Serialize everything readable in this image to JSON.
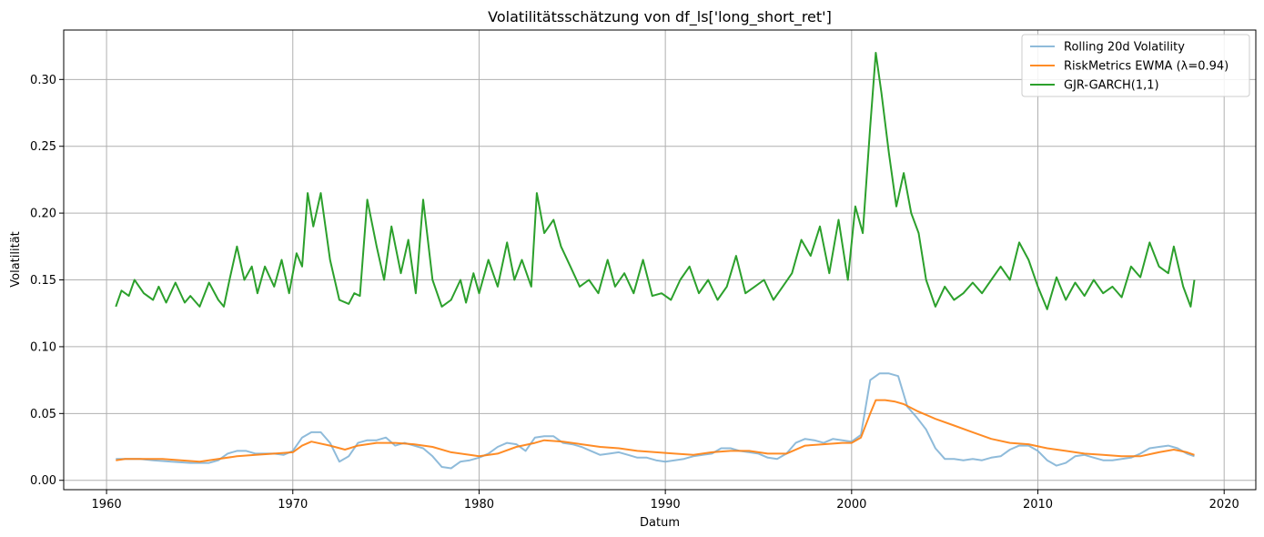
{
  "chart_data": {
    "type": "line",
    "title": "Volatilitätsschätzung von df_ls['long_short_ret']",
    "xlabel": "Datum",
    "ylabel": "Volatilität",
    "xlim": [
      1957.7,
      2021.7
    ],
    "ylim": [
      -0.007,
      0.337
    ],
    "x_ticks": [
      1960,
      1970,
      1980,
      1990,
      2000,
      2010,
      2020
    ],
    "x_tick_labels": [
      "1960",
      "1970",
      "1980",
      "1990",
      "2000",
      "2010",
      "2020"
    ],
    "y_ticks": [
      0.0,
      0.05,
      0.1,
      0.15,
      0.2,
      0.25,
      0.3
    ],
    "y_tick_labels": [
      "0.00",
      "0.05",
      "0.10",
      "0.15",
      "0.20",
      "0.25",
      "0.30"
    ],
    "grid": true,
    "legend_position": "top-right",
    "series": [
      {
        "name": "Rolling 20d Volatility",
        "color": "#7bafd4",
        "x": [
          1960.5,
          1961,
          1961.8,
          1962.5,
          1963.5,
          1964.5,
          1965.5,
          1966,
          1966.5,
          1967,
          1967.5,
          1968,
          1968.5,
          1969,
          1969.5,
          1970,
          1970.5,
          1971,
          1971.5,
          1972,
          1972.5,
          1973,
          1973.5,
          1974,
          1974.5,
          1975,
          1975.5,
          1976,
          1976.5,
          1977,
          1977.5,
          1978,
          1978.5,
          1979,
          1979.5,
          1980,
          1980.5,
          1981,
          1981.5,
          1982,
          1982.5,
          1983,
          1983.5,
          1984,
          1984.5,
          1985,
          1985.5,
          1986,
          1986.5,
          1987,
          1987.5,
          1988,
          1988.5,
          1989,
          1989.5,
          1990,
          1990.5,
          1991,
          1991.5,
          1992,
          1992.5,
          1993,
          1993.5,
          1994,
          1994.5,
          1995,
          1995.5,
          1996,
          1996.5,
          1997,
          1997.5,
          1998,
          1998.5,
          1999,
          1999.5,
          2000,
          2000.5,
          2001,
          2001.5,
          2002,
          2002.5,
          2003,
          2003.5,
          2004,
          2004.5,
          2005,
          2005.5,
          2006,
          2006.5,
          2007,
          2007.5,
          2008,
          2008.5,
          2009,
          2009.5,
          2010,
          2010.5,
          2011,
          2011.5,
          2012,
          2012.5,
          2013,
          2013.5,
          2014,
          2014.5,
          2015,
          2015.5,
          2016,
          2016.5,
          2017,
          2017.5,
          2018,
          2018.4
        ],
        "values": [
          0.016,
          0.016,
          0.016,
          0.015,
          0.014,
          0.013,
          0.013,
          0.015,
          0.02,
          0.022,
          0.022,
          0.02,
          0.02,
          0.02,
          0.019,
          0.022,
          0.032,
          0.036,
          0.036,
          0.028,
          0.014,
          0.018,
          0.028,
          0.03,
          0.03,
          0.032,
          0.026,
          0.028,
          0.026,
          0.024,
          0.018,
          0.01,
          0.009,
          0.014,
          0.015,
          0.017,
          0.02,
          0.025,
          0.028,
          0.027,
          0.022,
          0.032,
          0.033,
          0.033,
          0.028,
          0.027,
          0.025,
          0.022,
          0.019,
          0.02,
          0.021,
          0.019,
          0.017,
          0.017,
          0.015,
          0.014,
          0.015,
          0.016,
          0.018,
          0.019,
          0.02,
          0.024,
          0.024,
          0.022,
          0.021,
          0.02,
          0.017,
          0.016,
          0.02,
          0.028,
          0.031,
          0.03,
          0.028,
          0.031,
          0.03,
          0.029,
          0.034,
          0.075,
          0.08,
          0.08,
          0.078,
          0.055,
          0.047,
          0.038,
          0.024,
          0.016,
          0.016,
          0.015,
          0.016,
          0.015,
          0.017,
          0.018,
          0.023,
          0.026,
          0.026,
          0.022,
          0.015,
          0.011,
          0.013,
          0.018,
          0.019,
          0.017,
          0.015,
          0.015,
          0.016,
          0.017,
          0.02,
          0.024,
          0.025,
          0.026,
          0.024,
          0.02,
          0.018
        ],
        "opacity": 0.85
      },
      {
        "name": "RiskMetrics EWMA (λ=0.94)",
        "color": "#ff7f0e",
        "x": [
          1960.5,
          1961,
          1962,
          1963,
          1964,
          1965,
          1966,
          1967,
          1968,
          1969,
          1970,
          1970.5,
          1971,
          1972,
          1972.8,
          1973.5,
          1974.5,
          1975.5,
          1976.5,
          1977.5,
          1978.5,
          1979.5,
          1980,
          1981,
          1982,
          1983,
          1983.5,
          1984.5,
          1985.5,
          1986.5,
          1987.5,
          1988.5,
          1989.5,
          1990.5,
          1991.5,
          1992.5,
          1993.5,
          1994.5,
          1995.5,
          1996.5,
          1997.5,
          1998.5,
          1999.5,
          2000,
          2000.5,
          2001,
          2001.3,
          2001.8,
          2002.3,
          2002.8,
          2003.5,
          2004.5,
          2005.5,
          2006.5,
          2007.5,
          2008.5,
          2009.5,
          2010.5,
          2011.5,
          2012.5,
          2013.5,
          2014.5,
          2015.5,
          2016.5,
          2017.3,
          2018,
          2018.4
        ],
        "values": [
          0.015,
          0.016,
          0.016,
          0.016,
          0.015,
          0.014,
          0.016,
          0.018,
          0.019,
          0.02,
          0.021,
          0.026,
          0.029,
          0.026,
          0.023,
          0.026,
          0.028,
          0.028,
          0.027,
          0.025,
          0.021,
          0.019,
          0.018,
          0.02,
          0.025,
          0.028,
          0.03,
          0.029,
          0.027,
          0.025,
          0.024,
          0.022,
          0.021,
          0.02,
          0.019,
          0.021,
          0.022,
          0.022,
          0.02,
          0.02,
          0.026,
          0.027,
          0.028,
          0.028,
          0.032,
          0.05,
          0.06,
          0.06,
          0.059,
          0.057,
          0.052,
          0.046,
          0.041,
          0.036,
          0.031,
          0.028,
          0.027,
          0.024,
          0.022,
          0.02,
          0.019,
          0.018,
          0.018,
          0.021,
          0.023,
          0.021,
          0.019
        ],
        "opacity": 0.9
      },
      {
        "name": "GJR-GARCH(1,1)",
        "color": "#2ca02c",
        "x": [
          1960.5,
          1960.8,
          1961.2,
          1961.5,
          1962,
          1962.5,
          1962.8,
          1963.2,
          1963.7,
          1964.2,
          1964.5,
          1965,
          1965.5,
          1966,
          1966.3,
          1966.6,
          1967,
          1967.4,
          1967.8,
          1968.1,
          1968.5,
          1969,
          1969.4,
          1969.8,
          1970.2,
          1970.5,
          1970.8,
          1971.1,
          1971.5,
          1972,
          1972.5,
          1973,
          1973.3,
          1973.6,
          1974,
          1974.5,
          1974.9,
          1975.3,
          1975.8,
          1976.2,
          1976.6,
          1977,
          1977.5,
          1978,
          1978.5,
          1979,
          1979.3,
          1979.7,
          1980,
          1980.5,
          1981,
          1981.5,
          1981.9,
          1982.3,
          1982.8,
          1983.1,
          1983.5,
          1984,
          1984.4,
          1984.9,
          1985.4,
          1985.9,
          1986.4,
          1986.9,
          1987.3,
          1987.8,
          1988.3,
          1988.8,
          1989.3,
          1989.8,
          1990.3,
          1990.8,
          1991.3,
          1991.8,
          1992.3,
          1992.8,
          1993.3,
          1993.8,
          1994.3,
          1994.8,
          1995.3,
          1995.8,
          1996.3,
          1996.8,
          1997.3,
          1997.8,
          1998.3,
          1998.8,
          1999.3,
          1999.8,
          2000.2,
          2000.6,
          2001,
          2001.3,
          2001.6,
          2002,
          2002.4,
          2002.8,
          2003.2,
          2003.6,
          2004,
          2004.5,
          2005,
          2005.5,
          2006,
          2006.5,
          2007,
          2007.5,
          2008,
          2008.5,
          2009,
          2009.5,
          2010,
          2010.5,
          2011,
          2011.5,
          2012,
          2012.5,
          2013,
          2013.5,
          2014,
          2014.5,
          2015,
          2015.5,
          2016,
          2016.5,
          2017,
          2017.3,
          2017.8,
          2018.2,
          2018.4
        ],
        "values": [
          0.13,
          0.142,
          0.138,
          0.15,
          0.14,
          0.135,
          0.145,
          0.133,
          0.148,
          0.133,
          0.138,
          0.13,
          0.148,
          0.135,
          0.13,
          0.15,
          0.175,
          0.15,
          0.16,
          0.14,
          0.16,
          0.145,
          0.165,
          0.14,
          0.17,
          0.16,
          0.215,
          0.19,
          0.215,
          0.165,
          0.135,
          0.132,
          0.14,
          0.138,
          0.21,
          0.175,
          0.15,
          0.19,
          0.155,
          0.18,
          0.14,
          0.21,
          0.15,
          0.13,
          0.135,
          0.15,
          0.133,
          0.155,
          0.14,
          0.165,
          0.145,
          0.178,
          0.15,
          0.165,
          0.145,
          0.215,
          0.185,
          0.195,
          0.175,
          0.16,
          0.145,
          0.15,
          0.14,
          0.165,
          0.145,
          0.155,
          0.14,
          0.165,
          0.138,
          0.14,
          0.135,
          0.15,
          0.16,
          0.14,
          0.15,
          0.135,
          0.145,
          0.168,
          0.14,
          0.145,
          0.15,
          0.135,
          0.145,
          0.155,
          0.18,
          0.168,
          0.19,
          0.155,
          0.195,
          0.15,
          0.205,
          0.185,
          0.265,
          0.32,
          0.29,
          0.245,
          0.205,
          0.23,
          0.2,
          0.185,
          0.15,
          0.13,
          0.145,
          0.135,
          0.14,
          0.148,
          0.14,
          0.15,
          0.16,
          0.15,
          0.178,
          0.165,
          0.145,
          0.128,
          0.152,
          0.135,
          0.148,
          0.138,
          0.15,
          0.14,
          0.145,
          0.137,
          0.16,
          0.152,
          0.178,
          0.16,
          0.155,
          0.175,
          0.145,
          0.13,
          0.15
        ]
      }
    ]
  }
}
